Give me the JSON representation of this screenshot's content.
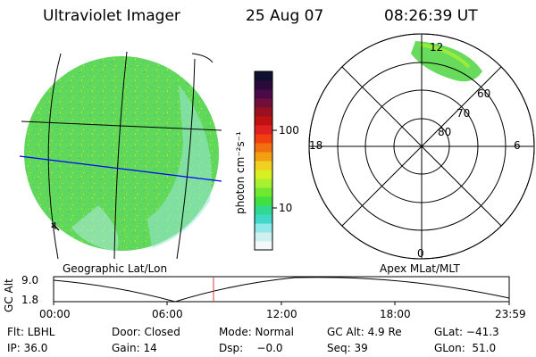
{
  "header": {
    "instrument": "Ultraviolet Imager",
    "date": "25 Aug 07",
    "time": "08:26:39 UT"
  },
  "colorbar": {
    "unit_label": "photon cm⁻²s⁻¹",
    "ticks": [
      "100",
      "10"
    ],
    "colors": [
      "#101030",
      "#2a0a3a",
      "#4c0a4a",
      "#70103a",
      "#9a1020",
      "#c01010",
      "#e02020",
      "#f04010",
      "#f07010",
      "#f0a010",
      "#f0d020",
      "#d8f020",
      "#a8f030",
      "#70e830",
      "#40e040",
      "#30d890",
      "#40d8c8",
      "#90e8e8",
      "#d0f0f0",
      "#f4f8f8"
    ]
  },
  "globe_plot": {
    "label": "Geographic Lat/Lon",
    "colors": {
      "fill": "#62d85a",
      "grid": "#000000",
      "equator": "#0000ff"
    },
    "corner_mark": "4"
  },
  "polar_plot": {
    "label": "Apex MLat/MLT",
    "mlt_labels": {
      "top": "12",
      "left": "18",
      "right": "6",
      "bottom": "0"
    },
    "lat_labels": [
      "60",
      "70",
      "80"
    ]
  },
  "altitude_chart": {
    "ylabel": "GC Alt",
    "y_ticks": [
      "9.0",
      "1.8"
    ],
    "x_ticks": [
      "00:00",
      "06:00",
      "12:00",
      "18:00",
      "23:59"
    ],
    "marker_color": "#d04040"
  },
  "info": {
    "flt": "Flt: LBHL",
    "door": "Door: Closed",
    "mode": "Mode: Normal",
    "gc_alt": "GC Alt: 4.9 Re",
    "glat": "GLat: −41.3",
    "ip": "IP: 36.0",
    "gain": "Gain: 14",
    "dsp": "Dsp:    −0.0",
    "seq": "Seq: 39",
    "glon": "GLon:  51.0"
  }
}
